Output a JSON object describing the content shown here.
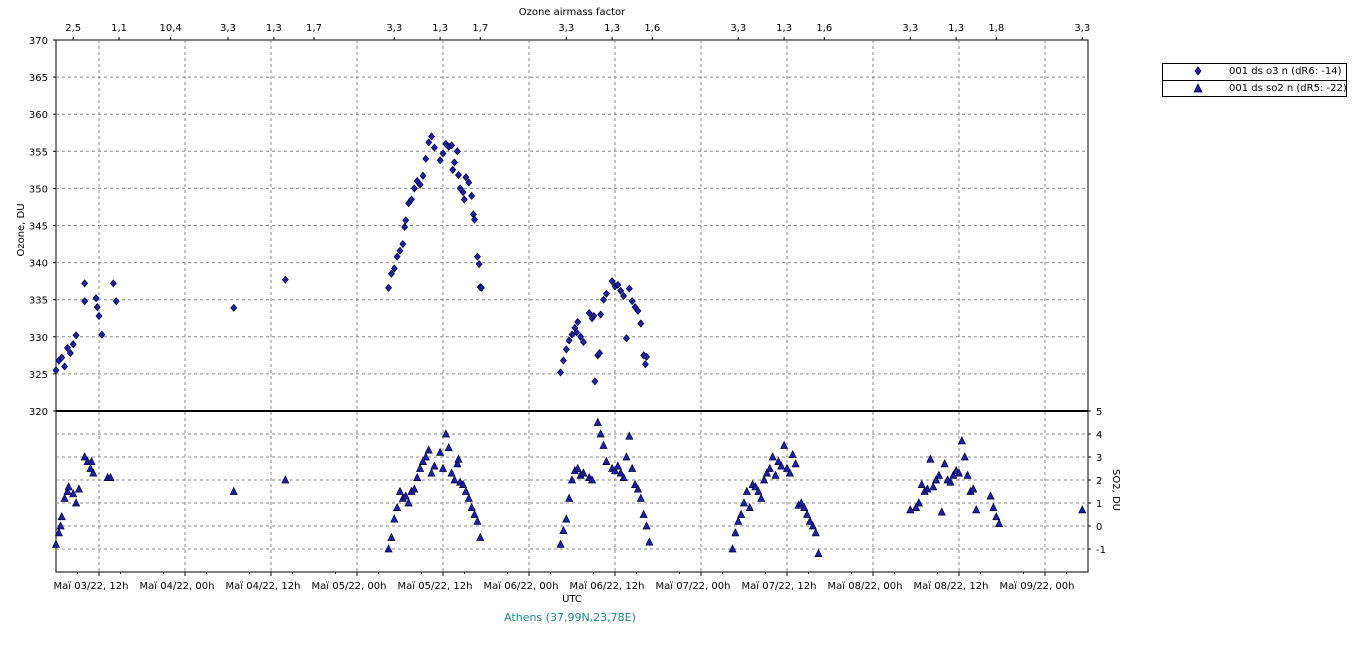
{
  "colors": {
    "series_fill": "#1f1fa8",
    "series_stroke": "#000033",
    "caption": "#1a8a8a"
  },
  "chart_data": [
    {
      "type": "scatter",
      "title": "Ozone airmass factor",
      "ylabel": "Ozone, DU",
      "ylim": [
        320,
        370
      ],
      "yticks": [
        320,
        325,
        330,
        335,
        340,
        345,
        350,
        355,
        360,
        365,
        370
      ],
      "top_axis_labels": [
        {
          "label": "2,5",
          "x": 0.3
        },
        {
          "label": "1,1",
          "x": 1.1
        },
        {
          "label": "10,4",
          "x": 2.0
        },
        {
          "label": "3,3",
          "x": 3.0
        },
        {
          "label": "1,3",
          "x": 3.8
        },
        {
          "label": "1,7",
          "x": 4.5
        },
        {
          "label": "3,3",
          "x": 5.9
        },
        {
          "label": "1,3",
          "x": 6.7
        },
        {
          "label": "1,7",
          "x": 7.4
        },
        {
          "label": "3,3",
          "x": 8.9
        },
        {
          "label": "1,3",
          "x": 9.7
        },
        {
          "label": "1,6",
          "x": 10.4
        },
        {
          "label": "3,3",
          "x": 11.9
        },
        {
          "label": "1,3",
          "x": 12.7
        },
        {
          "label": "1,6",
          "x": 13.4
        },
        {
          "label": "3,3",
          "x": 14.9
        },
        {
          "label": "1,3",
          "x": 15.7
        },
        {
          "label": "1,8",
          "x": 16.4
        },
        {
          "label": "3,3",
          "x": 17.9
        }
      ],
      "series": [
        {
          "name": "001 ds o3  n (dR6: -14)",
          "marker": "diamond",
          "points": [
            [
              0.0,
              325.5
            ],
            [
              0.05,
              326.8
            ],
            [
              0.1,
              327.2
            ],
            [
              0.15,
              326.0
            ],
            [
              0.2,
              328.5
            ],
            [
              0.25,
              327.8
            ],
            [
              0.3,
              329.0
            ],
            [
              0.35,
              330.2
            ],
            [
              0.5,
              337.2
            ],
            [
              0.5,
              334.8
            ],
            [
              0.7,
              335.2
            ],
            [
              0.72,
              334.0
            ],
            [
              0.75,
              332.8
            ],
            [
              0.8,
              330.3
            ],
            [
              1.0,
              337.2
            ],
            [
              1.05,
              334.8
            ],
            [
              3.1,
              333.9
            ],
            [
              4.0,
              337.7
            ],
            [
              5.8,
              336.6
            ],
            [
              5.85,
              338.5
            ],
            [
              5.9,
              339.2
            ],
            [
              5.95,
              340.8
            ],
            [
              6.0,
              341.6
            ],
            [
              6.05,
              342.5
            ],
            [
              6.08,
              344.8
            ],
            [
              6.1,
              345.7
            ],
            [
              6.15,
              348.0
            ],
            [
              6.2,
              348.5
            ],
            [
              6.25,
              350.0
            ],
            [
              6.3,
              351.0
            ],
            [
              6.35,
              350.5
            ],
            [
              6.4,
              351.7
            ],
            [
              6.45,
              354.0
            ],
            [
              6.5,
              356.2
            ],
            [
              6.55,
              357.0
            ],
            [
              6.6,
              355.5
            ],
            [
              6.7,
              353.8
            ],
            [
              6.75,
              354.7
            ],
            [
              6.8,
              356.0
            ],
            [
              6.85,
              355.6
            ],
            [
              6.9,
              355.8
            ],
            [
              6.92,
              352.5
            ],
            [
              6.95,
              353.5
            ],
            [
              7.0,
              355.0
            ],
            [
              7.02,
              351.8
            ],
            [
              7.05,
              350.0
            ],
            [
              7.1,
              349.5
            ],
            [
              7.12,
              348.5
            ],
            [
              7.15,
              351.5
            ],
            [
              7.2,
              350.8
            ],
            [
              7.25,
              349.0
            ],
            [
              7.28,
              346.5
            ],
            [
              7.3,
              345.8
            ],
            [
              7.35,
              340.8
            ],
            [
              7.38,
              339.8
            ],
            [
              7.4,
              336.7
            ],
            [
              7.42,
              336.6
            ],
            [
              8.8,
              325.2
            ],
            [
              8.85,
              326.8
            ],
            [
              8.9,
              328.3
            ],
            [
              8.95,
              329.5
            ],
            [
              9.0,
              330.3
            ],
            [
              9.05,
              331.2
            ],
            [
              9.08,
              330.6
            ],
            [
              9.1,
              332.0
            ],
            [
              9.15,
              330.0
            ],
            [
              9.2,
              329.3
            ],
            [
              9.3,
              333.2
            ],
            [
              9.35,
              332.5
            ],
            [
              9.38,
              332.8
            ],
            [
              9.4,
              324.0
            ],
            [
              9.45,
              327.5
            ],
            [
              9.48,
              327.8
            ],
            [
              9.5,
              333.0
            ],
            [
              9.55,
              335.0
            ],
            [
              9.6,
              335.8
            ],
            [
              9.7,
              337.5
            ],
            [
              9.75,
              336.8
            ],
            [
              9.8,
              337.0
            ],
            [
              9.85,
              336.2
            ],
            [
              9.9,
              335.5
            ],
            [
              9.95,
              329.8
            ],
            [
              10.0,
              336.5
            ],
            [
              10.05,
              334.8
            ],
            [
              10.1,
              334.0
            ],
            [
              10.15,
              333.5
            ],
            [
              10.2,
              331.8
            ],
            [
              10.25,
              327.5
            ],
            [
              10.28,
              326.3
            ],
            [
              10.3,
              327.3
            ]
          ]
        },
        {
          "name": "001 ds so2 n (dR5: -22)",
          "marker": "triangle",
          "points": [
            [
              0.0,
              -0.8
            ],
            [
              0.05,
              -0.3
            ],
            [
              0.08,
              0.0
            ],
            [
              0.1,
              0.4
            ],
            [
              0.15,
              1.2
            ],
            [
              0.2,
              1.5
            ],
            [
              0.22,
              1.7
            ],
            [
              0.3,
              1.4
            ],
            [
              0.35,
              1.0
            ],
            [
              0.4,
              1.6
            ],
            [
              0.5,
              3.0
            ],
            [
              0.55,
              2.8
            ],
            [
              0.6,
              2.5
            ],
            [
              0.62,
              2.8
            ],
            [
              0.65,
              2.3
            ],
            [
              0.9,
              2.1
            ],
            [
              0.95,
              2.1
            ],
            [
              3.1,
              1.5
            ],
            [
              4.0,
              2.0
            ],
            [
              5.8,
              -1.0
            ],
            [
              5.85,
              -0.5
            ],
            [
              5.9,
              0.3
            ],
            [
              5.95,
              0.8
            ],
            [
              6.0,
              1.5
            ],
            [
              6.05,
              1.2
            ],
            [
              6.1,
              1.3
            ],
            [
              6.15,
              1.0
            ],
            [
              6.2,
              1.5
            ],
            [
              6.25,
              1.6
            ],
            [
              6.3,
              2.1
            ],
            [
              6.35,
              2.5
            ],
            [
              6.4,
              2.8
            ],
            [
              6.45,
              3.0
            ],
            [
              6.5,
              3.3
            ],
            [
              6.55,
              2.3
            ],
            [
              6.6,
              2.6
            ],
            [
              6.7,
              3.2
            ],
            [
              6.75,
              2.5
            ],
            [
              6.8,
              4.0
            ],
            [
              6.85,
              3.4
            ],
            [
              6.9,
              2.3
            ],
            [
              6.95,
              2.0
            ],
            [
              7.0,
              2.7
            ],
            [
              7.02,
              2.9
            ],
            [
              7.05,
              1.9
            ],
            [
              7.1,
              1.8
            ],
            [
              7.15,
              1.5
            ],
            [
              7.2,
              1.2
            ],
            [
              7.25,
              0.8
            ],
            [
              7.3,
              0.5
            ],
            [
              7.35,
              0.2
            ],
            [
              7.4,
              -0.5
            ],
            [
              8.8,
              -0.8
            ],
            [
              8.85,
              -0.2
            ],
            [
              8.9,
              0.3
            ],
            [
              8.95,
              1.2
            ],
            [
              9.0,
              2.0
            ],
            [
              9.05,
              2.4
            ],
            [
              9.1,
              2.5
            ],
            [
              9.15,
              2.2
            ],
            [
              9.2,
              2.3
            ],
            [
              9.3,
              2.1
            ],
            [
              9.35,
              2.0
            ],
            [
              9.45,
              4.5
            ],
            [
              9.5,
              4.0
            ],
            [
              9.55,
              3.5
            ],
            [
              9.6,
              2.8
            ],
            [
              9.7,
              2.5
            ],
            [
              9.75,
              2.4
            ],
            [
              9.8,
              2.6
            ],
            [
              9.85,
              2.3
            ],
            [
              9.9,
              2.1
            ],
            [
              9.95,
              3.0
            ],
            [
              10.0,
              3.9
            ],
            [
              10.05,
              2.5
            ],
            [
              10.1,
              1.8
            ],
            [
              10.15,
              1.6
            ],
            [
              10.2,
              1.2
            ],
            [
              10.25,
              0.5
            ],
            [
              10.3,
              0.0
            ],
            [
              10.35,
              -0.7
            ],
            [
              11.8,
              -1.0
            ],
            [
              11.85,
              -0.3
            ],
            [
              11.9,
              0.2
            ],
            [
              11.95,
              0.5
            ],
            [
              12.0,
              1.0
            ],
            [
              12.05,
              1.5
            ],
            [
              12.1,
              0.8
            ],
            [
              12.15,
              1.8
            ],
            [
              12.2,
              1.7
            ],
            [
              12.25,
              1.5
            ],
            [
              12.3,
              1.2
            ],
            [
              12.35,
              2.0
            ],
            [
              12.4,
              2.3
            ],
            [
              12.45,
              2.5
            ],
            [
              12.5,
              3.0
            ],
            [
              12.55,
              2.2
            ],
            [
              12.6,
              2.8
            ],
            [
              12.65,
              2.6
            ],
            [
              12.7,
              3.5
            ],
            [
              12.75,
              2.5
            ],
            [
              12.8,
              2.3
            ],
            [
              12.85,
              3.1
            ],
            [
              12.9,
              2.7
            ],
            [
              12.95,
              0.9
            ],
            [
              13.0,
              1.0
            ],
            [
              13.05,
              0.8
            ],
            [
              13.1,
              0.5
            ],
            [
              13.15,
              0.2
            ],
            [
              13.2,
              0.0
            ],
            [
              13.25,
              -0.3
            ],
            [
              13.3,
              -1.2
            ],
            [
              14.9,
              0.7
            ],
            [
              15.0,
              0.8
            ],
            [
              15.05,
              1.0
            ],
            [
              15.1,
              1.8
            ],
            [
              15.15,
              1.5
            ],
            [
              15.2,
              1.6
            ],
            [
              15.25,
              2.9
            ],
            [
              15.3,
              1.7
            ],
            [
              15.35,
              2.0
            ],
            [
              15.4,
              2.2
            ],
            [
              15.45,
              0.6
            ],
            [
              15.5,
              2.7
            ],
            [
              15.55,
              2.0
            ],
            [
              15.6,
              1.9
            ],
            [
              15.65,
              2.2
            ],
            [
              15.7,
              2.4
            ],
            [
              15.75,
              2.3
            ],
            [
              15.8,
              3.7
            ],
            [
              15.85,
              3.0
            ],
            [
              15.9,
              2.2
            ],
            [
              15.95,
              1.5
            ],
            [
              16.0,
              1.6
            ],
            [
              16.05,
              0.7
            ],
            [
              16.3,
              1.3
            ],
            [
              16.35,
              0.8
            ],
            [
              16.4,
              0.4
            ],
            [
              16.45,
              0.1
            ],
            [
              17.9,
              0.7
            ]
          ]
        }
      ],
      "y2label": "SO2, DU",
      "y2lim": [
        -2,
        5
      ],
      "y2ticks": [
        -1,
        0,
        1,
        2,
        3,
        4,
        5
      ],
      "xlabel": "UTC",
      "xticks": [
        {
          "label": "Maï 03/22, 12h",
          "x": 1.0
        },
        {
          "label": "Maï 04/22, 00h",
          "x": 3.0
        },
        {
          "label": "Maï 04/22, 12h",
          "x": 5.0
        },
        {
          "label": "Maï 05/22, 00h",
          "x": 7.0
        },
        {
          "label": "Maï 05/22, 12h",
          "x": 9.0
        },
        {
          "label": "Maï 06/22, 00h",
          "x": 11.0
        },
        {
          "label": "Maï 06/22, 12h",
          "x": 13.0
        },
        {
          "label": "Maï 07/22, 00h",
          "x": 15.0
        },
        {
          "label": "Maï 07/22, 12h",
          "x": 17.0
        },
        {
          "label": "Maï 08/22, 00h",
          "x": 19.0
        },
        {
          "label": "Maï 08/22, 12h",
          "x": 21.0
        },
        {
          "label": "Maï 09/22, 00h",
          "x": 23.0
        }
      ],
      "grid": true,
      "legend": "top-right"
    }
  ],
  "caption": "Athens (37,99N,23,78E)",
  "legend": [
    {
      "label": "001 ds o3  n (dR6: -14)",
      "icon": "diamond-marker"
    },
    {
      "label": "001 ds so2 n (dR5: -22)",
      "icon": "triangle-marker"
    }
  ]
}
